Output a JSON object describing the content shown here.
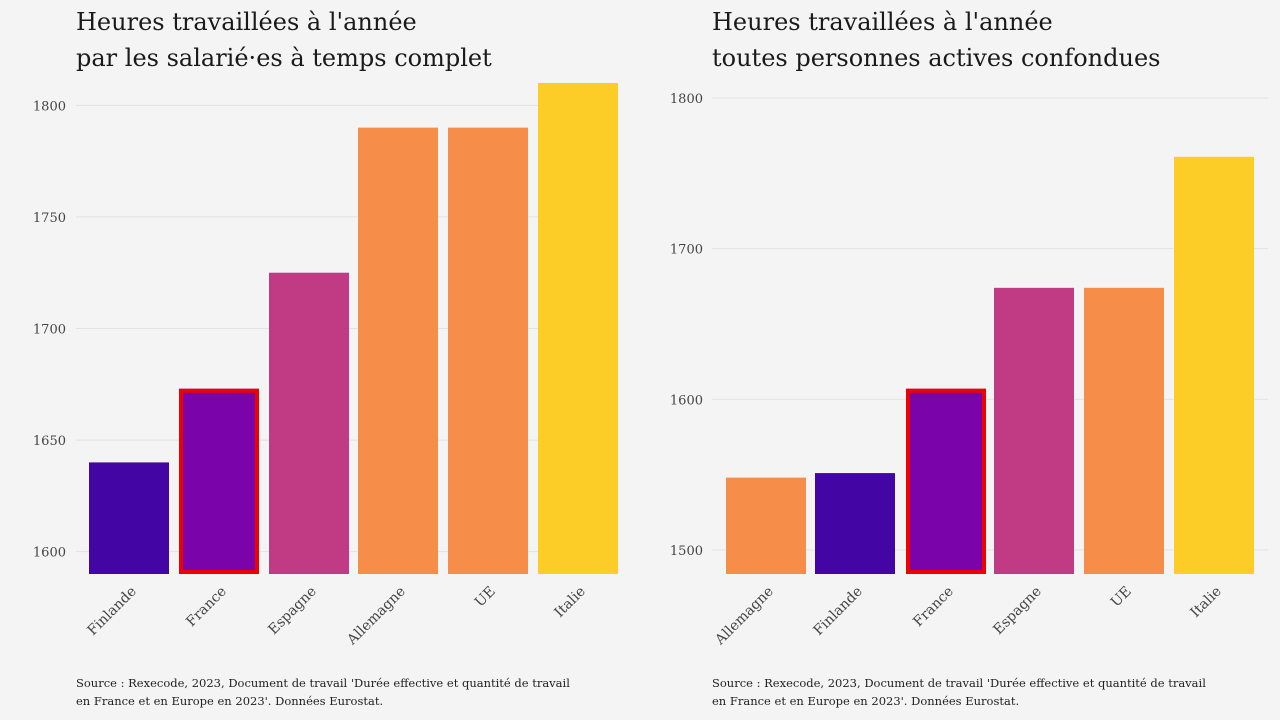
{
  "charts": [
    {
      "title_line1": "Heures travaillées à l'année",
      "title_line2": "par les salarié·es à temps complet",
      "source_line1": "Source : Rexecode, 2023, Document de travail 'Durée effective et quantité de travail",
      "source_line2": "en France et en Europe en 2023'. Données Eurostat."
    },
    {
      "title_line1": "Heures travaillées à l'année",
      "title_line2": "toutes personnes actives confondues",
      "source_line1": "Source : Rexecode, 2023, Document de travail 'Durée effective et quantité de travail",
      "source_line2": "en France et en Europe en 2023'. Données Eurostat."
    }
  ],
  "chart_data": [
    {
      "type": "bar",
      "title": "Heures travaillées à l'année par les salarié·es à temps complet",
      "categories": [
        "Finlande",
        "France",
        "Espagne",
        "Allemagne",
        "UE",
        "Italie"
      ],
      "values": [
        1640,
        1673,
        1725,
        1790,
        1790,
        1810
      ],
      "colors": [
        "#4305a3",
        "#7a04a9",
        "#c13b84",
        "#f68d48",
        "#f68d48",
        "#fccc27"
      ],
      "highlight": "France",
      "highlight_color": "#ee0000",
      "ylim": [
        1590,
        1810
      ],
      "yticks": [
        1600,
        1650,
        1700,
        1750,
        1800
      ],
      "grid": true,
      "xlabel": "",
      "ylabel": ""
    },
    {
      "type": "bar",
      "title": "Heures travaillées à l'année toutes personnes actives confondues",
      "categories": [
        "Allemagne",
        "Finlande",
        "France",
        "Espagne",
        "UE",
        "Italie"
      ],
      "values": [
        1548,
        1551,
        1607,
        1674,
        1674,
        1761
      ],
      "colors": [
        "#f68d48",
        "#4305a3",
        "#7a04a9",
        "#c13b84",
        "#f68d48",
        "#fccc27"
      ],
      "highlight": "France",
      "highlight_color": "#ee0000",
      "ylim": [
        1484,
        1810
      ],
      "yticks": [
        1500,
        1600,
        1700,
        1800
      ],
      "grid": true,
      "xlabel": "",
      "ylabel": ""
    }
  ]
}
